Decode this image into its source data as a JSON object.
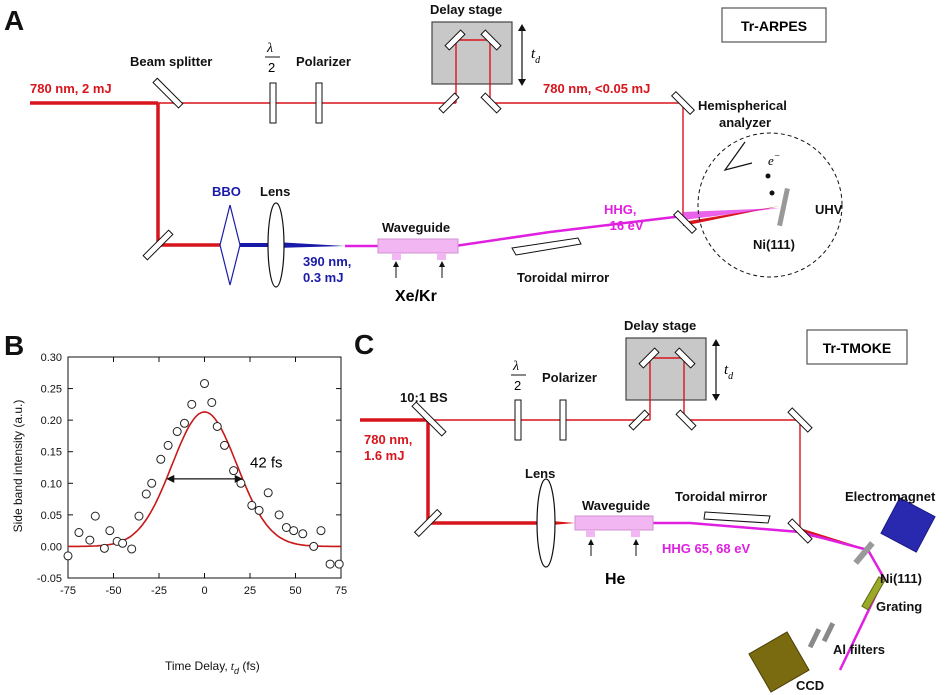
{
  "panels": {
    "a": "A",
    "b": "B",
    "c": "C"
  },
  "colors": {
    "pump": "#d8141c",
    "blue": "#1a1aa8",
    "hhg": "#e020e0",
    "fit": "#c81818"
  },
  "panelA": {
    "title": "Tr-ARPES",
    "delay_stage": "Delay stage",
    "td_t": "t",
    "td_d": "d",
    "beam_splitter": "Beam splitter",
    "halfwave_num": "λ",
    "halfwave_den": "2",
    "polarizer": "Polarizer",
    "input": "780 nm, 2 mJ",
    "probe": "780 nm, <0.05 mJ",
    "analyzer_1": "Hemispherical",
    "analyzer_2": "analyzer",
    "electron_e": "e",
    "electron_sup": "−",
    "bbo": "BBO",
    "lens": "Lens",
    "waveguide": "Waveguide",
    "hhg_1": "HHG,",
    "hhg_2": "~16 eV",
    "uhv": "UHV",
    "sample": "Ni(111)",
    "blue_1": "390 nm,",
    "blue_2": "0.3 mJ",
    "toroidal": "Toroidal mirror",
    "gas": "Xe/Kr"
  },
  "panelC": {
    "title": "Tr-TMOKE",
    "delay_stage": "Delay stage",
    "td_t": "t",
    "td_d": "d",
    "bs": "10:1 BS",
    "halfwave_num": "λ",
    "halfwave_den": "2",
    "polarizer": "Polarizer",
    "input_1": "780 nm,",
    "input_2": "1.6 mJ",
    "lens": "Lens",
    "waveguide": "Waveguide",
    "toroidal": "Toroidal mirror",
    "electromagnet": "Electromagnet",
    "hhg": "HHG 65, 68 eV",
    "sample": "Ni(111)",
    "gas": "He",
    "grating": "Grating",
    "filters": "Al filters",
    "ccd": "CCD"
  },
  "chart_data": {
    "type": "scatter",
    "xlabel": "Time Delay,",
    "xlabel_var": "t",
    "xlabel_sub": "d",
    "xlabel_unit": " (fs)",
    "ylabel": "Side band intensity (a.u.)",
    "xlim": [
      -75,
      75
    ],
    "ylim": [
      -0.05,
      0.3
    ],
    "xticks": [
      "-75",
      "-50",
      "-25",
      "0",
      "25",
      "50",
      "75"
    ],
    "yticks": [
      "-0.05",
      "0.00",
      "0.05",
      "0.10",
      "0.15",
      "0.20",
      "0.25",
      "0.30"
    ],
    "annotation": "42 fs",
    "fwhm_range": [
      -21,
      21
    ],
    "fwhm_level": 0.107,
    "fit": {
      "amplitude": 0.213,
      "center": 0,
      "fwhm": 42,
      "offset": 0
    },
    "points": {
      "x": [
        -75,
        -69,
        -63,
        -60,
        -55,
        -52,
        -48,
        -45,
        -40,
        -36,
        -32,
        -29,
        -24,
        -20,
        -15,
        -11,
        -7,
        0,
        4,
        7,
        11,
        16,
        20,
        26,
        30,
        35,
        41,
        45,
        49,
        54,
        60,
        64,
        69,
        74
      ],
      "y": [
        -0.015,
        0.022,
        0.01,
        0.048,
        -0.003,
        0.025,
        0.008,
        0.005,
        -0.004,
        0.048,
        0.083,
        0.1,
        0.138,
        0.16,
        0.182,
        0.195,
        0.225,
        0.258,
        0.228,
        0.19,
        0.16,
        0.12,
        0.1,
        0.065,
        0.057,
        0.085,
        0.05,
        0.03,
        0.025,
        0.02,
        0.0,
        0.025,
        -0.028,
        -0.028
      ]
    }
  }
}
